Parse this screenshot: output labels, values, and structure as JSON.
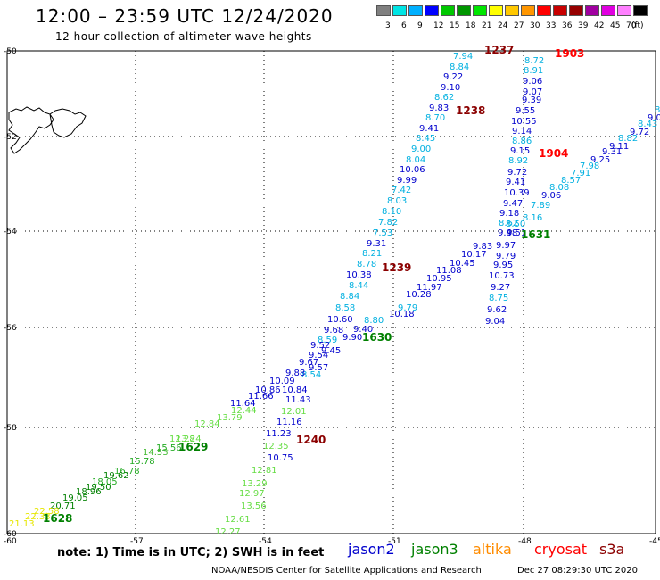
{
  "header": {
    "title": "12:00 – 23:59 UTC 12/24/2020",
    "subtitle": "12 hour collection of altimeter wave heights"
  },
  "colorbar": {
    "unit": "(ft)",
    "colors": [
      "#808080",
      "#00e5e5",
      "#00b0ff",
      "#0000ff",
      "#00c800",
      "#009600",
      "#00e600",
      "#ffff00",
      "#ffc800",
      "#ff9600",
      "#ff0000",
      "#c80000",
      "#960000",
      "#a000a0",
      "#e000e0",
      "#ff80ff",
      "#000000"
    ],
    "labels": [
      "3",
      "6",
      "9",
      "12",
      "15",
      "18",
      "21",
      "24",
      "27",
      "30",
      "33",
      "36",
      "39",
      "42",
      "45",
      "70"
    ]
  },
  "axes": {
    "lat_labels": [
      "-50",
      "-52",
      "-54",
      "-56",
      "-58",
      "-60"
    ],
    "lon_labels": [
      "-57",
      "-54",
      "-51",
      "-48",
      "-45"
    ]
  },
  "passes": [
    {
      "label": "1237",
      "color": "#8b0000"
    },
    {
      "label": "1903",
      "color": "#ff0000"
    },
    {
      "label": "1238",
      "color": "#8b0000"
    },
    {
      "label": "1904",
      "color": "#ff0000"
    },
    {
      "label": "1631",
      "color": "#008000"
    },
    {
      "label": "1239",
      "color": "#8b0000"
    },
    {
      "label": "1630",
      "color": "#008000"
    },
    {
      "label": "1240",
      "color": "#8b0000"
    },
    {
      "label": "1629",
      "color": "#008000"
    },
    {
      "label": "1628",
      "color": "#008000"
    }
  ],
  "wave_heights": [
    {
      "v": "7.94",
      "c": "#00b0e0"
    },
    {
      "v": "8.84",
      "c": "#00b0e0"
    },
    {
      "v": "9.22",
      "c": "#0000cd"
    },
    {
      "v": "9.10",
      "c": "#0000cd"
    },
    {
      "v": "8.62",
      "c": "#00b0e0"
    },
    {
      "v": "9.83",
      "c": "#0000cd"
    },
    {
      "v": "8.70",
      "c": "#00b0e0"
    },
    {
      "v": "9.41",
      "c": "#0000cd"
    },
    {
      "v": "8.45",
      "c": "#00b0e0"
    },
    {
      "v": "9.00",
      "c": "#00b0e0"
    },
    {
      "v": "8.04",
      "c": "#00b0e0"
    },
    {
      "v": "10.06",
      "c": "#0000cd"
    },
    {
      "v": "9.99",
      "c": "#0000cd"
    },
    {
      "v": "7.42",
      "c": "#00b0e0"
    },
    {
      "v": "8.03",
      "c": "#00b0e0"
    },
    {
      "v": "8.10",
      "c": "#00b0e0"
    },
    {
      "v": "7.82",
      "c": "#00b0e0"
    },
    {
      "v": "7.53",
      "c": "#00b0e0"
    },
    {
      "v": "9.31",
      "c": "#0000cd"
    },
    {
      "v": "8.21",
      "c": "#00b0e0"
    },
    {
      "v": "8.78",
      "c": "#00b0e0"
    },
    {
      "v": "10.38",
      "c": "#0000cd"
    },
    {
      "v": "8.44",
      "c": "#00b0e0"
    },
    {
      "v": "8.84",
      "c": "#00b0e0"
    },
    {
      "v": "8.58",
      "c": "#00b0e0"
    },
    {
      "v": "10.60",
      "c": "#0000cd"
    },
    {
      "v": "9.68",
      "c": "#0000cd"
    },
    {
      "v": "8.59",
      "c": "#00b0e0"
    },
    {
      "v": "9.52",
      "c": "#0000cd"
    },
    {
      "v": "9.45",
      "c": "#0000cd"
    },
    {
      "v": "9.54",
      "c": "#0000cd"
    },
    {
      "v": "9.67",
      "c": "#0000cd"
    },
    {
      "v": "9.57",
      "c": "#0000cd"
    },
    {
      "v": "8.54",
      "c": "#00b0e0"
    },
    {
      "v": "9.88",
      "c": "#0000cd"
    },
    {
      "v": "10.09",
      "c": "#0000cd"
    },
    {
      "v": "10.86",
      "c": "#0000cd"
    },
    {
      "v": "10.84",
      "c": "#0000cd"
    },
    {
      "v": "11.66",
      "c": "#0000cd"
    },
    {
      "v": "11.64",
      "c": "#0000cd"
    },
    {
      "v": "11.43",
      "c": "#0000cd"
    },
    {
      "v": "12.44",
      "c": "#66dd44"
    },
    {
      "v": "12.01",
      "c": "#66dd44"
    },
    {
      "v": "13.79",
      "c": "#66dd44"
    },
    {
      "v": "11.16",
      "c": "#0000cd"
    },
    {
      "v": "12.84",
      "c": "#66dd44"
    },
    {
      "v": "13.24",
      "c": "#66dd44"
    },
    {
      "v": "11.23",
      "c": "#0000cd"
    },
    {
      "v": "12.28",
      "c": "#66dd44"
    },
    {
      "v": "12.35",
      "c": "#66dd44"
    },
    {
      "v": "15.56",
      "c": "#22aa22"
    },
    {
      "v": "14.53",
      "c": "#44bb33"
    },
    {
      "v": "10.75",
      "c": "#0000cd"
    },
    {
      "v": "15.78",
      "c": "#22aa22"
    },
    {
      "v": "12.81",
      "c": "#66dd44"
    },
    {
      "v": "16.78",
      "c": "#22aa22"
    },
    {
      "v": "13.29",
      "c": "#66dd44"
    },
    {
      "v": "18.05",
      "c": "#22aa22"
    },
    {
      "v": "19.62",
      "c": "#008000"
    },
    {
      "v": "12.97",
      "c": "#66dd44"
    },
    {
      "v": "19.50",
      "c": "#008000"
    },
    {
      "v": "18.96",
      "c": "#008000"
    },
    {
      "v": "13.56",
      "c": "#66dd44"
    },
    {
      "v": "19.05",
      "c": "#008000"
    },
    {
      "v": "20.71",
      "c": "#008000"
    },
    {
      "v": "22.58",
      "c": "#e6e600"
    },
    {
      "v": "12.61",
      "c": "#66dd44"
    },
    {
      "v": "22.33",
      "c": "#e6e600"
    },
    {
      "v": "12.27",
      "c": "#66dd44"
    },
    {
      "v": "21.13",
      "c": "#e6e600"
    },
    {
      "v": "8.72",
      "c": "#00b0e0"
    },
    {
      "v": "8.91",
      "c": "#00b0e0"
    },
    {
      "v": "9.06",
      "c": "#0000cd"
    },
    {
      "v": "9.07",
      "c": "#0000cd"
    },
    {
      "v": "9.39",
      "c": "#0000cd"
    },
    {
      "v": "9.55",
      "c": "#0000cd"
    },
    {
      "v": "10.55",
      "c": "#0000cd"
    },
    {
      "v": "9.14",
      "c": "#0000cd"
    },
    {
      "v": "8.86",
      "c": "#00b0e0"
    },
    {
      "v": "9.15",
      "c": "#0000cd"
    },
    {
      "v": "8.92",
      "c": "#00b0e0"
    },
    {
      "v": "9.72",
      "c": "#0000cd"
    },
    {
      "v": "9.41",
      "c": "#0000cd"
    },
    {
      "v": "10.39",
      "c": "#0000cd"
    },
    {
      "v": "9.47",
      "c": "#0000cd"
    },
    {
      "v": "9.18",
      "c": "#0000cd"
    },
    {
      "v": "8.62",
      "c": "#00b0e0"
    },
    {
      "v": "9.48",
      "c": "#0000cd"
    },
    {
      "v": "9.97",
      "c": "#0000cd"
    },
    {
      "v": "9.79",
      "c": "#0000cd"
    },
    {
      "v": "9.95",
      "c": "#0000cd"
    },
    {
      "v": "10.73",
      "c": "#0000cd"
    },
    {
      "v": "9.27",
      "c": "#0000cd"
    },
    {
      "v": "8.75",
      "c": "#00b0e0"
    },
    {
      "v": "9.62",
      "c": "#0000cd"
    },
    {
      "v": "9.04",
      "c": "#0000cd"
    },
    {
      "v": "8.76",
      "c": "#00b0e0"
    },
    {
      "v": "9.0",
      "c": "#0000cd"
    },
    {
      "v": "8.43",
      "c": "#00b0e0"
    },
    {
      "v": "9.72",
      "c": "#0000cd"
    },
    {
      "v": "8.82",
      "c": "#00b0e0"
    },
    {
      "v": "9.11",
      "c": "#0000cd"
    },
    {
      "v": "9.31",
      "c": "#0000cd"
    },
    {
      "v": "9.25",
      "c": "#0000cd"
    },
    {
      "v": "7.98",
      "c": "#00b0e0"
    },
    {
      "v": "7.91",
      "c": "#00b0e0"
    },
    {
      "v": "8.57",
      "c": "#00b0e0"
    },
    {
      "v": "8.08",
      "c": "#00b0e0"
    },
    {
      "v": "9.06",
      "c": "#0000cd"
    },
    {
      "v": "7.89",
      "c": "#00b0e0"
    },
    {
      "v": "8.16",
      "c": "#00b0e0"
    },
    {
      "v": "8.50",
      "c": "#00b0e0"
    },
    {
      "v": "9.51",
      "c": "#0000cd"
    },
    {
      "v": "9.83",
      "c": "#0000cd"
    },
    {
      "v": "10.17",
      "c": "#0000cd"
    },
    {
      "v": "10.45",
      "c": "#0000cd"
    },
    {
      "v": "11.08",
      "c": "#0000cd"
    },
    {
      "v": "10.95",
      "c": "#0000cd"
    },
    {
      "v": "11.97",
      "c": "#0000cd"
    },
    {
      "v": "10.28",
      "c": "#0000cd"
    },
    {
      "v": "9.79",
      "c": "#00b0e0"
    },
    {
      "v": "10.18",
      "c": "#0000cd"
    },
    {
      "v": "8.80",
      "c": "#00b0e0"
    },
    {
      "v": "9.40",
      "c": "#0000cd"
    },
    {
      "v": "9.90",
      "c": "#0000cd"
    }
  ],
  "note": "note:  1) Time is in UTC;  2) SWH is in feet",
  "legend": [
    {
      "name": "jason2",
      "color": "#0000cd"
    },
    {
      "name": "jason3",
      "color": "#008000"
    },
    {
      "name": "altika",
      "color": "#ff8c00"
    },
    {
      "name": "cryosat",
      "color": "#ff0000"
    },
    {
      "name": "s3a",
      "color": "#8b0000"
    }
  ],
  "footer": "NOAA/NESDIS Center for Satellite Applications and Research",
  "timestamp": "Dec 27 08:29:30 UTC 2020"
}
